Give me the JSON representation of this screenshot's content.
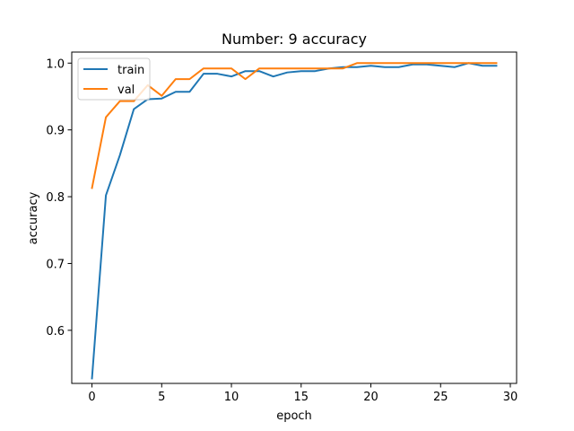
{
  "chart_data": {
    "type": "line",
    "title": "Number: 9 accuracy",
    "xlabel": "epoch",
    "ylabel": "accuracy",
    "xlim": [
      -1.45,
      30.45
    ],
    "ylim": [
      0.5205,
      1.0165
    ],
    "xticks": [
      0,
      5,
      10,
      15,
      20,
      25,
      30
    ],
    "yticks": [
      0.6,
      0.7,
      0.8,
      0.9,
      1.0
    ],
    "xtick_labels": [
      "0",
      "5",
      "10",
      "15",
      "20",
      "25",
      "30"
    ],
    "ytick_labels": [
      "0.6",
      "0.7",
      "0.8",
      "0.9",
      "1.0"
    ],
    "grid": false,
    "legend_position": "top-left",
    "x": [
      0,
      1,
      2,
      3,
      4,
      5,
      6,
      7,
      8,
      9,
      10,
      11,
      12,
      13,
      14,
      15,
      16,
      17,
      18,
      19,
      20,
      21,
      22,
      23,
      24,
      25,
      26,
      27,
      28,
      29
    ],
    "series": [
      {
        "name": "train",
        "color": "#1f77b4",
        "values": [
          0.528,
          0.802,
          0.862,
          0.931,
          0.946,
          0.947,
          0.957,
          0.957,
          0.984,
          0.984,
          0.98,
          0.988,
          0.988,
          0.98,
          0.986,
          0.988,
          0.988,
          0.992,
          0.994,
          0.994,
          0.996,
          0.994,
          0.994,
          0.998,
          0.998,
          0.996,
          0.994,
          1.0,
          0.996,
          0.996
        ]
      },
      {
        "name": "val",
        "color": "#ff7f0e",
        "values": [
          0.813,
          0.919,
          0.943,
          0.943,
          0.967,
          0.951,
          0.976,
          0.976,
          0.992,
          0.992,
          0.992,
          0.976,
          0.992,
          0.992,
          0.992,
          0.992,
          0.992,
          0.992,
          0.992,
          1.0,
          1.0,
          1.0,
          1.0,
          1.0,
          1.0,
          1.0,
          1.0,
          1.0,
          1.0,
          1.0
        ]
      }
    ]
  }
}
